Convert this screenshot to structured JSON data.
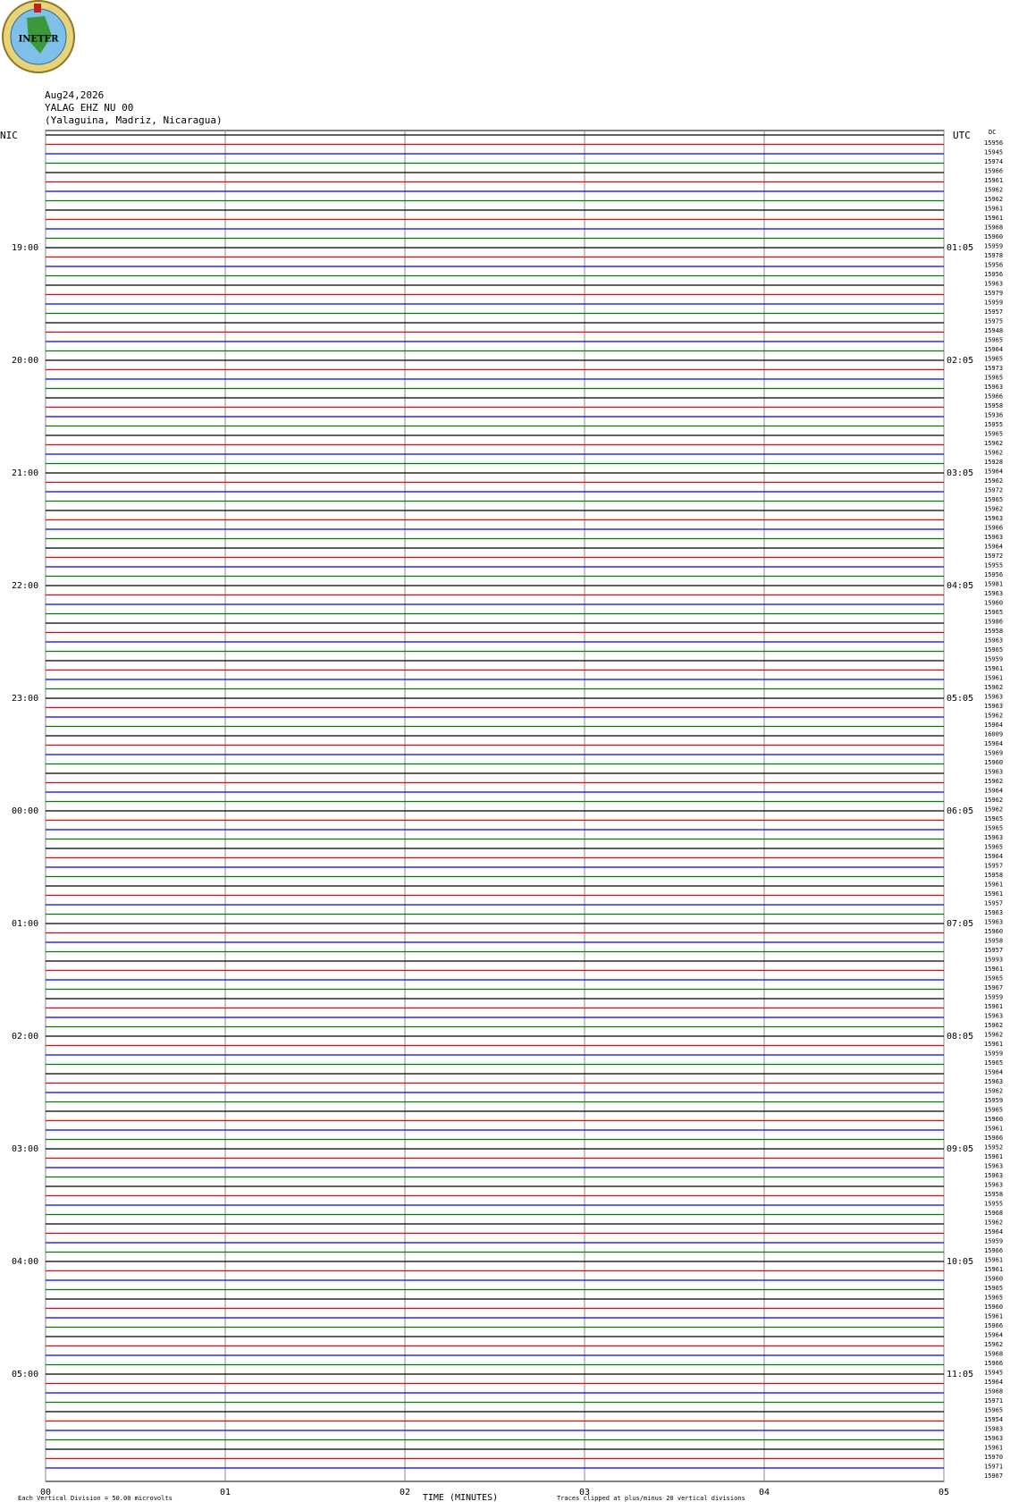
{
  "logo": "INETER",
  "chart_data": {
    "type": "helicorder",
    "title": [
      "Aug24,2026",
      "YALAG EHZ NU 00",
      "(Yalaguina, Madriz, Nicaragua)"
    ],
    "left_zone": "NIC",
    "right_zone": "UTC",
    "dc_header": "DC",
    "left_hours": [
      "19:00",
      "20:00",
      "21:00",
      "22:00",
      "23:00",
      "00:00",
      "01:00",
      "02:00",
      "03:00",
      "04:00",
      "05:00"
    ],
    "right_hours": [
      "01:05",
      "02:05",
      "03:05",
      "04:05",
      "05:05",
      "06:05",
      "07:05",
      "08:05",
      "09:05",
      "10:05",
      "11:05"
    ],
    "trace_colors": [
      "#000000",
      "#ff0000",
      "#0000ff",
      "#007f00"
    ],
    "dc": [
      15956,
      15945,
      15974,
      15966,
      15961,
      15962,
      15962,
      15961,
      15961,
      15968,
      15960,
      15959,
      15978,
      15956,
      15956,
      15963,
      15979,
      15959,
      15957,
      15975,
      15948,
      15965,
      15964,
      15965,
      15973,
      15965,
      15963,
      15966,
      15958,
      15936,
      15955,
      15965,
      15962,
      15962,
      15928,
      15964,
      15962,
      15972,
      15965,
      15962,
      15963,
      15966,
      15963,
      15964,
      15972,
      15955,
      15956,
      15981,
      15963,
      15960,
      15965,
      15986,
      15958,
      15963,
      15965,
      15959,
      15961,
      15961,
      15962,
      15963,
      15963,
      15962,
      15964,
      16009,
      15964,
      15969,
      15960,
      15963,
      15962,
      15964,
      15962,
      15962,
      15965,
      15965,
      15963,
      15965,
      15964,
      15957,
      15958,
      15961,
      15961,
      15957,
      15963,
      15963,
      15960,
      15958,
      15957,
      15993,
      15961,
      15965,
      15967,
      15959,
      15961,
      15963,
      15962,
      15962,
      15961,
      15959,
      15965,
      15964,
      15963,
      15962,
      15959,
      15965,
      15960,
      15961,
      15966,
      15952,
      15961,
      15963,
      15963,
      15963,
      15958,
      15955,
      15968,
      15962,
      15964,
      15959,
      15966,
      15961,
      15961,
      15960,
      15965,
      15965,
      15960,
      15961,
      15966,
      15964,
      15962,
      15968,
      15966,
      15945,
      15964,
      15968,
      15971,
      15965,
      15954,
      15983,
      15963,
      15961,
      15970,
      15971,
      15967
    ],
    "xlim": [
      0,
      5
    ],
    "xticks": [
      {
        "value": 0,
        "label": "00"
      },
      {
        "value": 1,
        "label": "01"
      },
      {
        "value": 2,
        "label": "02"
      },
      {
        "value": 3,
        "label": "03"
      },
      {
        "value": 4,
        "label": "04"
      },
      {
        "value": 5,
        "label": "05"
      }
    ],
    "xlabel": "TIME (MINUTES)",
    "scale_note": "Each Vertical Division =    50.00 microvolts",
    "clip_note": "Traces clipped at plus/minus 20 vertical divisions",
    "grid": true
  }
}
